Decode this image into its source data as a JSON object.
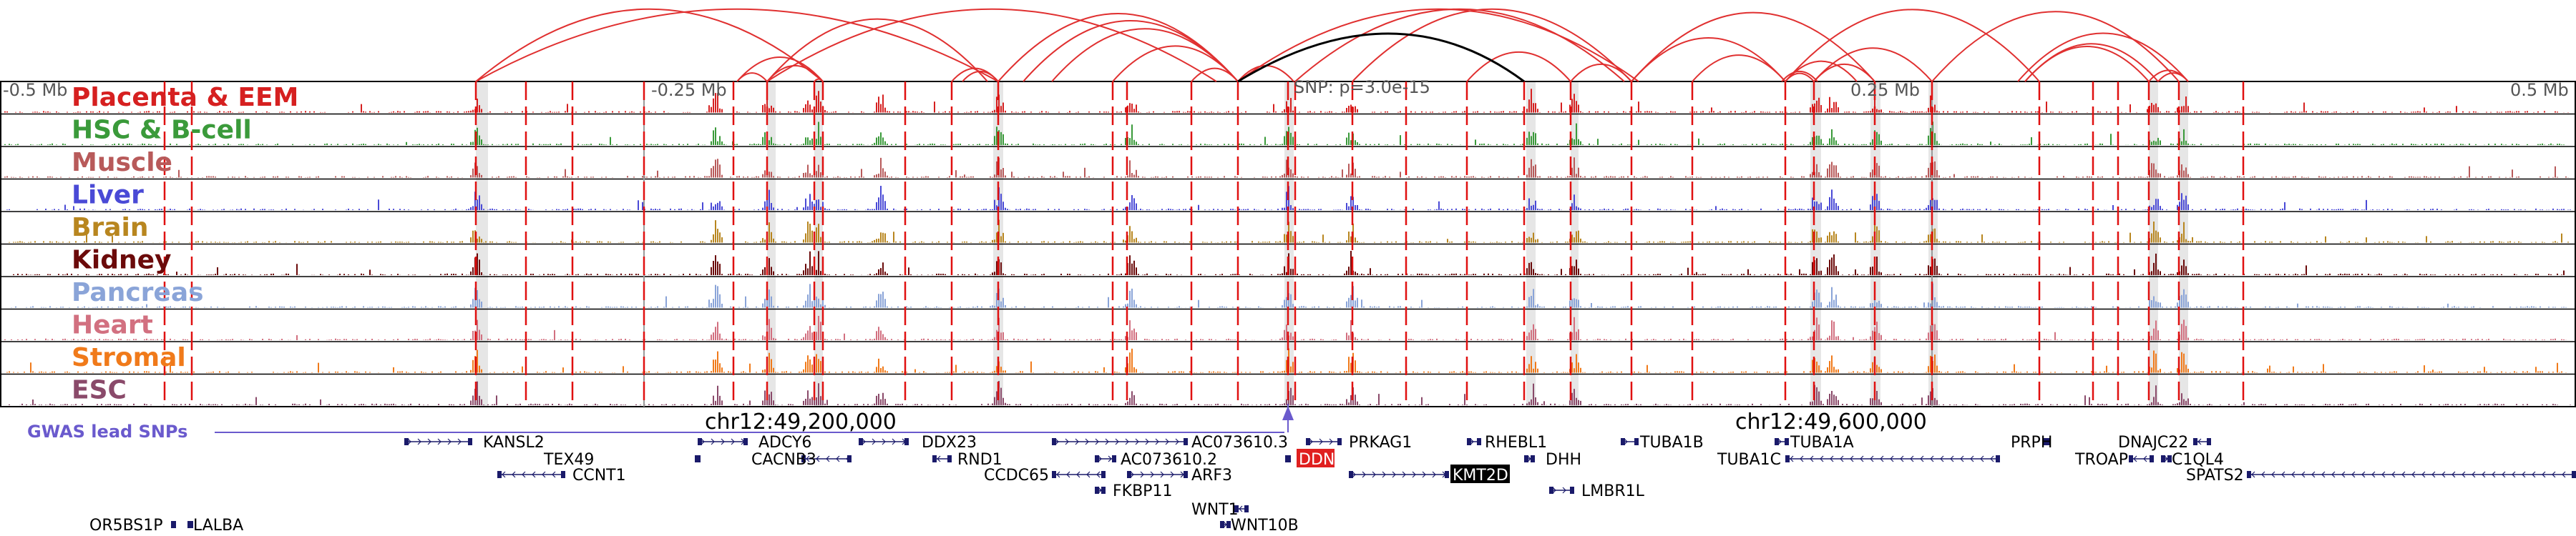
{
  "browser": {
    "region": "chr12",
    "scale_labels": {
      "left": "-0.5 Mb",
      "mid_left": "-0.25 Mb",
      "mid_right": "0.25 Mb",
      "right": "0.5 Mb"
    },
    "snp_label": "SNP: p=3.0e-15",
    "coordinate_labels": [
      "chr12:49,200,000",
      "chr12:49,600,000"
    ],
    "gwas_label": "GWAS lead SNPs"
  },
  "tracks": [
    {
      "name": "Placenta & EEM",
      "color": "#d62020"
    },
    {
      "name": "HSC & B-cell",
      "color": "#3a9a3a"
    },
    {
      "name": "Muscle",
      "color": "#b85a5a"
    },
    {
      "name": "Liver",
      "color": "#4a4ad6"
    },
    {
      "name": "Brain",
      "color": "#b8861f"
    },
    {
      "name": "Kidney",
      "color": "#6b0a0a"
    },
    {
      "name": "Pancreas",
      "color": "#8aa4d8"
    },
    {
      "name": "Heart",
      "color": "#d27080"
    },
    {
      "name": "Stromal",
      "color": "#f07a1a"
    },
    {
      "name": "ESC",
      "color": "#8a4a6a"
    }
  ],
  "genes": [
    {
      "name": "KANSL2"
    },
    {
      "name": "ADCY6"
    },
    {
      "name": "DDX23"
    },
    {
      "name": "AC073610.3"
    },
    {
      "name": "PRKAG1"
    },
    {
      "name": "RHEBL1"
    },
    {
      "name": "TUBA1B"
    },
    {
      "name": "TUBA1A"
    },
    {
      "name": "PRPH"
    },
    {
      "name": "DNAJC22"
    },
    {
      "name": "TEX49"
    },
    {
      "name": "CACNB3"
    },
    {
      "name": "RND1"
    },
    {
      "name": "AC073610.2"
    },
    {
      "name": "DDN",
      "highlight": "#e02020"
    },
    {
      "name": "DHH"
    },
    {
      "name": "TUBA1C"
    },
    {
      "name": "TROAP"
    },
    {
      "name": "C1QL4"
    },
    {
      "name": "CCNT1"
    },
    {
      "name": "CCDC65"
    },
    {
      "name": "ARF3"
    },
    {
      "name": "KMT2D",
      "highlight": "#000000"
    },
    {
      "name": "SPATS2"
    },
    {
      "name": "FKBP11"
    },
    {
      "name": "LMBR1L"
    },
    {
      "name": "OR5BS1P"
    },
    {
      "name": "LALBA"
    },
    {
      "name": "WNT1"
    },
    {
      "name": "WNT10B"
    }
  ],
  "colors": {
    "loop": "#e03030",
    "lead_loop": "#000000",
    "gwas": "#6a5acd",
    "gene": "#1a1a6a",
    "marker": "#e01010"
  }
}
